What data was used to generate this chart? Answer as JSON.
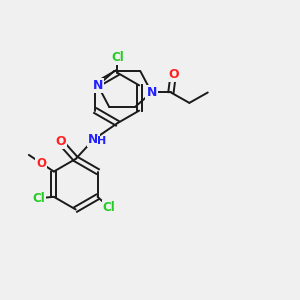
{
  "bg_color": "#f0f0f0",
  "bond_color": "#1a1a1a",
  "atom_colors": {
    "Cl": "#22cc22",
    "N": "#2222ff",
    "O": "#ff2222",
    "C": "#1a1a1a"
  }
}
